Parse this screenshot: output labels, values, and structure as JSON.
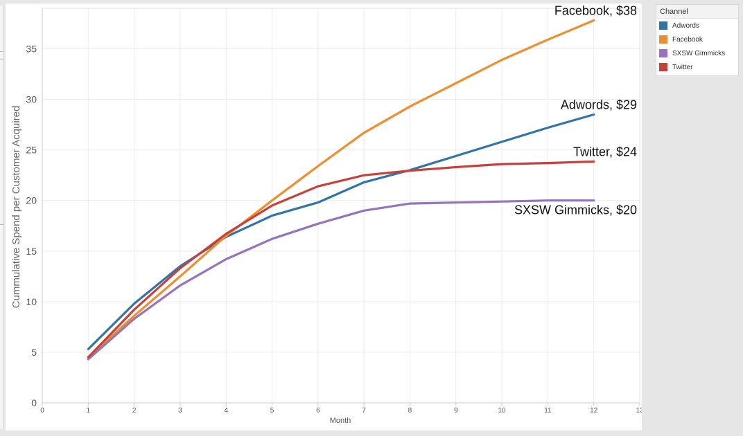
{
  "chart_data": {
    "type": "line",
    "title": "",
    "xlabel": "Month",
    "ylabel": "Cummulative Spend per Customer Acquired",
    "xlim": [
      0,
      13
    ],
    "ylim": [
      0,
      39
    ],
    "x_ticks": [
      "0",
      "1",
      "2",
      "3",
      "4",
      "5",
      "6",
      "7",
      "8",
      "9",
      "10",
      "11",
      "12",
      "13"
    ],
    "y_ticks": [
      "0",
      "5",
      "10",
      "15",
      "20",
      "25",
      "30",
      "35"
    ],
    "grid": true,
    "legend_position": "right",
    "x": [
      1,
      2,
      3,
      4,
      5,
      6,
      7,
      8,
      9,
      10,
      11,
      12
    ],
    "series": [
      {
        "name": "Adwords",
        "color": "#3274a8",
        "values": [
          5.3,
          9.8,
          13.5,
          16.4,
          18.5,
          19.8,
          21.8,
          23.0,
          24.4,
          25.8,
          27.2,
          28.5
        ]
      },
      {
        "name": "Facebook",
        "color": "#ef8e2e",
        "values": [
          4.5,
          8.6,
          12.5,
          16.5,
          20.0,
          23.4,
          26.7,
          29.3,
          31.6,
          33.9,
          35.9,
          37.8
        ]
      },
      {
        "name": "SXSW Gimmicks",
        "color": "#9573bd",
        "values": [
          4.3,
          8.3,
          11.6,
          14.2,
          16.2,
          17.7,
          19.0,
          19.7,
          19.8,
          19.9,
          20.0,
          20.0
        ]
      },
      {
        "name": "Twitter",
        "color": "#c5413a",
        "values": [
          4.5,
          9.2,
          13.3,
          16.7,
          19.5,
          21.4,
          22.5,
          22.95,
          23.3,
          23.6,
          23.7,
          23.85
        ]
      }
    ],
    "annotations": [
      {
        "series": "Facebook",
        "text": "Facebook, $38"
      },
      {
        "series": "Adwords",
        "text": "Adwords, $29"
      },
      {
        "series": "Twitter",
        "text": "Twitter, $24"
      },
      {
        "series": "SXSW Gimmicks",
        "text": "SXSW Gimmicks, $20"
      }
    ]
  },
  "legend": {
    "title": "Channel",
    "items": [
      {
        "label": "Adwords",
        "color": "#3274a8"
      },
      {
        "label": "Facebook",
        "color": "#ef8e2e"
      },
      {
        "label": "SXSW Gimmicks",
        "color": "#9573bd"
      },
      {
        "label": "Twitter",
        "color": "#c5413a"
      }
    ]
  }
}
